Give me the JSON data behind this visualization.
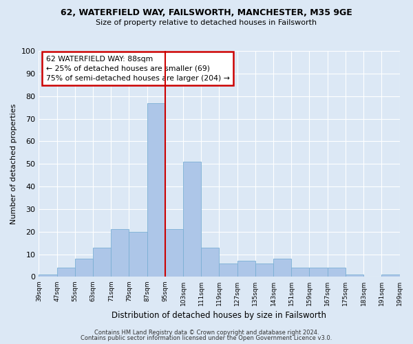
{
  "title1": "62, WATERFIELD WAY, FAILSWORTH, MANCHESTER, M35 9GE",
  "title2": "Size of property relative to detached houses in Failsworth",
  "xlabel": "Distribution of detached houses by size in Failsworth",
  "ylabel": "Number of detached properties",
  "bar_values": [
    1,
    4,
    8,
    13,
    21,
    20,
    77,
    21,
    51,
    13,
    6,
    7,
    6,
    8,
    4,
    4,
    4,
    1,
    0,
    1
  ],
  "bin_labels": [
    "39sqm",
    "47sqm",
    "55sqm",
    "63sqm",
    "71sqm",
    "79sqm",
    "87sqm",
    "95sqm",
    "103sqm",
    "111sqm",
    "119sqm",
    "127sqm",
    "135sqm",
    "143sqm",
    "151sqm",
    "159sqm",
    "167sqm",
    "175sqm",
    "183sqm",
    "191sqm",
    "199sqm"
  ],
  "bar_color": "#adc6e8",
  "bar_edge_color": "#7aafd4",
  "ylim": [
    0,
    100
  ],
  "yticks": [
    0,
    10,
    20,
    30,
    40,
    50,
    60,
    70,
    80,
    90,
    100
  ],
  "vline_color": "#cc0000",
  "annotation_title": "62 WATERFIELD WAY: 88sqm",
  "annotation_line1": "← 25% of detached houses are smaller (69)",
  "annotation_line2": "75% of semi-detached houses are larger (204) →",
  "annotation_box_color": "#cc0000",
  "footer1": "Contains HM Land Registry data © Crown copyright and database right 2024.",
  "footer2": "Contains public sector information licensed under the Open Government Licence v3.0.",
  "background_color": "#dce8f5",
  "plot_bg_color": "#dce8f5",
  "grid_color": "#ffffff"
}
